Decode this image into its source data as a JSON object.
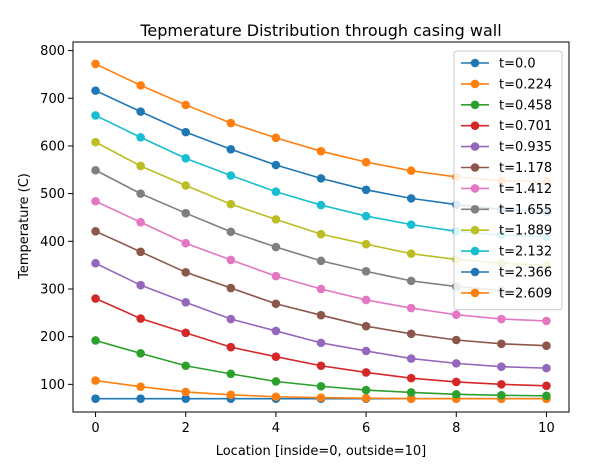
{
  "chart_data": {
    "type": "line",
    "title": "Tepmerature Distribution through casing wall",
    "xlabel": "Location [inside=0, outside=10]",
    "ylabel": "Temperature (C)",
    "xlim": [
      -0.5,
      10.5
    ],
    "ylim": [
      42,
      818
    ],
    "xticks": [
      0,
      2,
      4,
      6,
      8,
      10
    ],
    "yticks": [
      100,
      200,
      300,
      400,
      500,
      600,
      700,
      800
    ],
    "grid": false,
    "legend_position": "upper right",
    "marker": "circle",
    "x": [
      0,
      1,
      2,
      3,
      4,
      5,
      6,
      7,
      8,
      9,
      10
    ],
    "series": [
      {
        "name": "t=0.0",
        "color": "#1f77b4",
        "values": [
          70,
          70,
          70,
          70,
          70,
          70,
          70,
          70,
          70,
          70,
          70
        ]
      },
      {
        "name": "t=0.224",
        "color": "#ff7f0e",
        "values": [
          108,
          95,
          84,
          78,
          74,
          72,
          71,
          70,
          70,
          70,
          70
        ]
      },
      {
        "name": "t=0.458",
        "color": "#2ca02c",
        "values": [
          192,
          165,
          139,
          122,
          106,
          96,
          88,
          83,
          79,
          77,
          76
        ]
      },
      {
        "name": "t=0.701",
        "color": "#d62728",
        "values": [
          280,
          238,
          208,
          178,
          158,
          139,
          125,
          113,
          105,
          100,
          97
        ]
      },
      {
        "name": "t=0.935",
        "color": "#9467bd",
        "values": [
          354,
          308,
          272,
          237,
          212,
          187,
          170,
          154,
          144,
          137,
          134
        ]
      },
      {
        "name": "t=1.178",
        "color": "#8c564b",
        "values": [
          421,
          378,
          335,
          302,
          269,
          245,
          222,
          206,
          193,
          185,
          181
        ]
      },
      {
        "name": "t=1.412",
        "color": "#e377c2",
        "values": [
          484,
          440,
          396,
          361,
          327,
          300,
          277,
          260,
          246,
          237,
          233
        ]
      },
      {
        "name": "t=1.655",
        "color": "#7f7f7f",
        "values": [
          549,
          500,
          459,
          420,
          388,
          359,
          337,
          317,
          305,
          297,
          293
        ]
      },
      {
        "name": "t=1.889",
        "color": "#bcbd22",
        "values": [
          608,
          558,
          517,
          478,
          446,
          415,
          394,
          374,
          362,
          354,
          350
        ]
      },
      {
        "name": "t=2.132",
        "color": "#17becf",
        "values": [
          664,
          618,
          574,
          538,
          504,
          476,
          453,
          435,
          421,
          413,
          409
        ]
      },
      {
        "name": "t=2.366",
        "color": "#1f77b4",
        "values": [
          716,
          672,
          629,
          593,
          560,
          532,
          508,
          490,
          477,
          467,
          462
        ]
      },
      {
        "name": "t=2.609",
        "color": "#ff7f0e",
        "values": [
          772,
          727,
          686,
          648,
          617,
          589,
          566,
          548,
          535,
          527,
          525
        ]
      }
    ]
  }
}
